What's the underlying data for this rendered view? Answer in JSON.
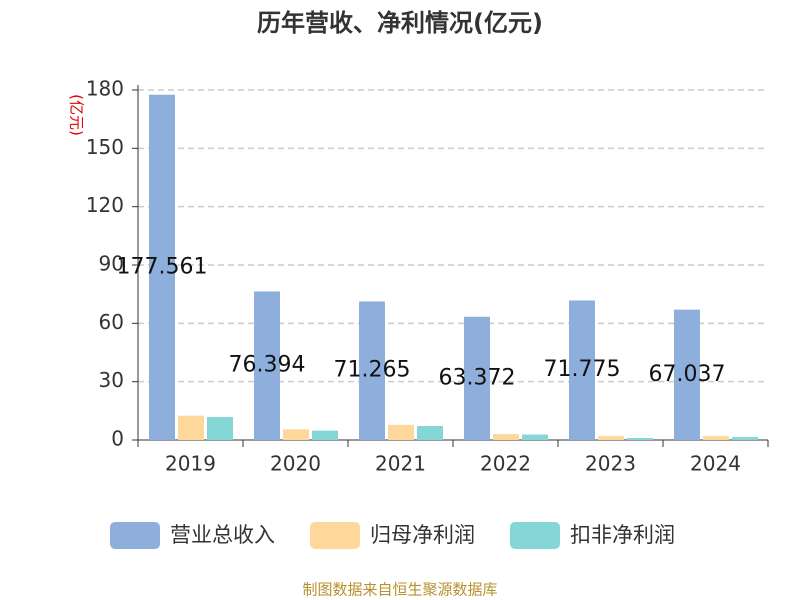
{
  "chart_data": {
    "type": "bar",
    "title": "历年营收、净利情况(亿元)",
    "y_label": "(亿元)",
    "categories": [
      "2019",
      "2020",
      "2021",
      "2022",
      "2023",
      "2024"
    ],
    "series": [
      {
        "name": "营业总收入",
        "color": "#8eaedc",
        "values": [
          177.561,
          76.394,
          71.265,
          63.372,
          71.775,
          67.037
        ],
        "value_labels": [
          "177.561",
          "76.394",
          "71.265",
          "63.372",
          "71.775",
          "67.037"
        ]
      },
      {
        "name": "归母净利润",
        "color": "#fdd89a",
        "values": [
          12.5,
          5.5,
          7.8,
          3.0,
          2.0,
          2.0
        ]
      },
      {
        "name": "扣非净利润",
        "color": "#85d6d6",
        "values": [
          11.8,
          4.8,
          7.2,
          2.8,
          1.0,
          1.5
        ]
      }
    ],
    "ylim": [
      0,
      180
    ],
    "yticks": [
      0,
      30,
      60,
      90,
      120,
      150,
      180
    ],
    "grid": true,
    "source": "制图数据来自恒生聚源数据库"
  }
}
